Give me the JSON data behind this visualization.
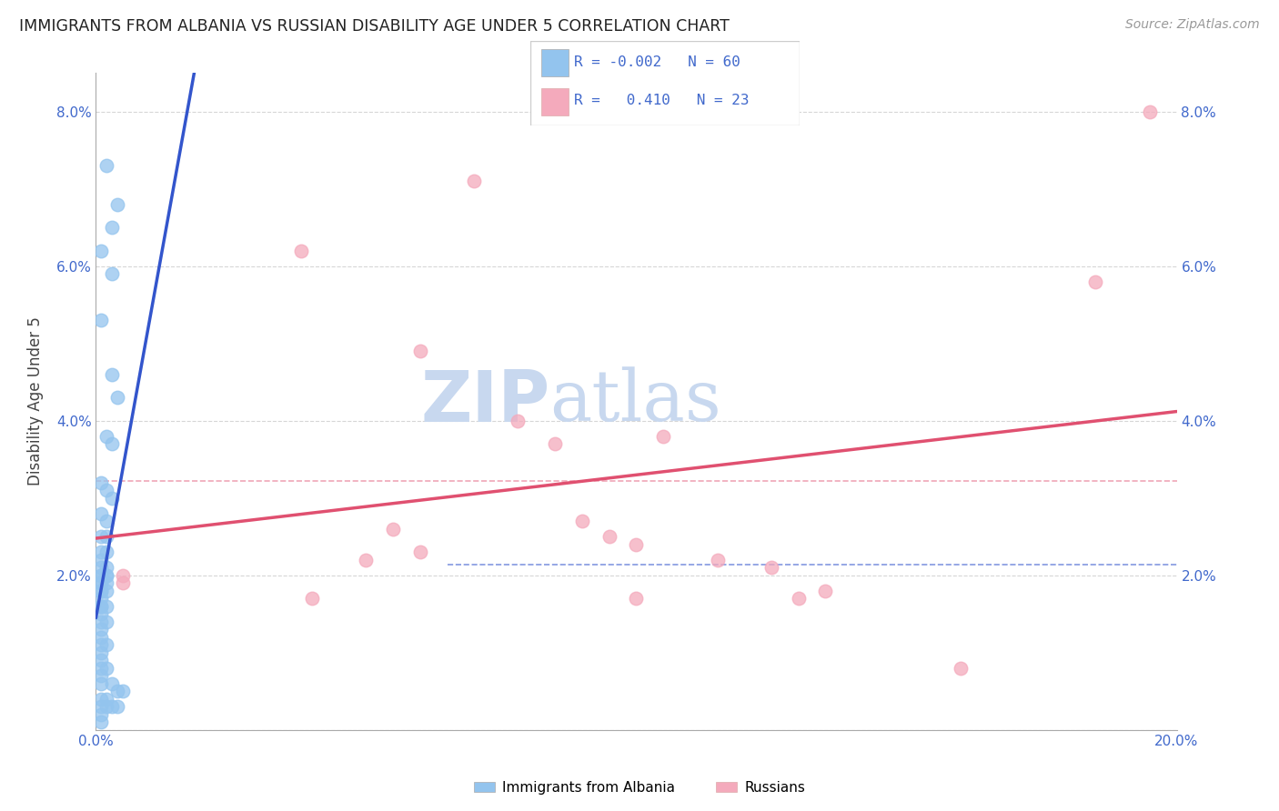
{
  "title": "IMMIGRANTS FROM ALBANIA VS RUSSIAN DISABILITY AGE UNDER 5 CORRELATION CHART",
  "source": "Source: ZipAtlas.com",
  "ylabel": "Disability Age Under 5",
  "xlim": [
    0.0,
    0.2
  ],
  "ylim": [
    0.0,
    0.085
  ],
  "xticks": [
    0.0,
    0.05,
    0.1,
    0.15,
    0.2
  ],
  "xticklabels": [
    "0.0%",
    "",
    "",
    "",
    "20.0%"
  ],
  "yticks": [
    0.0,
    0.02,
    0.04,
    0.06,
    0.08
  ],
  "yticklabels": [
    "",
    "2.0%",
    "4.0%",
    "6.0%",
    "8.0%"
  ],
  "albania_x": [
    0.002,
    0.004,
    0.003,
    0.001,
    0.003,
    0.001,
    0.003,
    0.004,
    0.002,
    0.003,
    0.001,
    0.002,
    0.003,
    0.001,
    0.002,
    0.001,
    0.002,
    0.001,
    0.002,
    0.001,
    0.001,
    0.002,
    0.001,
    0.002,
    0.001,
    0.002,
    0.001,
    0.001,
    0.002,
    0.001,
    0.001,
    0.002,
    0.001,
    0.001,
    0.002,
    0.001,
    0.001,
    0.001,
    0.002,
    0.001,
    0.001,
    0.001,
    0.002,
    0.001,
    0.001,
    0.001,
    0.002,
    0.001,
    0.001,
    0.003,
    0.004,
    0.005,
    0.001,
    0.002,
    0.001,
    0.002,
    0.003,
    0.004,
    0.001,
    0.001
  ],
  "albania_y": [
    0.073,
    0.068,
    0.065,
    0.062,
    0.059,
    0.053,
    0.046,
    0.043,
    0.038,
    0.037,
    0.032,
    0.031,
    0.03,
    0.028,
    0.027,
    0.025,
    0.025,
    0.023,
    0.023,
    0.022,
    0.021,
    0.021,
    0.02,
    0.02,
    0.02,
    0.02,
    0.019,
    0.019,
    0.019,
    0.018,
    0.018,
    0.018,
    0.017,
    0.016,
    0.016,
    0.016,
    0.015,
    0.014,
    0.014,
    0.013,
    0.012,
    0.011,
    0.011,
    0.01,
    0.009,
    0.008,
    0.008,
    0.007,
    0.006,
    0.006,
    0.005,
    0.005,
    0.004,
    0.004,
    0.003,
    0.003,
    0.003,
    0.003,
    0.002,
    0.001
  ],
  "russian_x": [
    0.005,
    0.005,
    0.038,
    0.06,
    0.07,
    0.078,
    0.085,
    0.09,
    0.095,
    0.1,
    0.105,
    0.115,
    0.125,
    0.135,
    0.16,
    0.185,
    0.195,
    0.04,
    0.05,
    0.055,
    0.06,
    0.1,
    0.13
  ],
  "russian_y": [
    0.02,
    0.019,
    0.062,
    0.049,
    0.071,
    0.04,
    0.037,
    0.027,
    0.025,
    0.024,
    0.038,
    0.022,
    0.021,
    0.018,
    0.008,
    0.058,
    0.08,
    0.017,
    0.022,
    0.026,
    0.023,
    0.017,
    0.017
  ],
  "albania_color": "#93C4EE",
  "russian_color": "#F4AABC",
  "albania_line_color": "#3355CC",
  "russian_line_color": "#E05070",
  "albania_R": -0.002,
  "albania_N": 60,
  "russian_R": 0.41,
  "russian_N": 23,
  "legend_label_albania": "Immigrants from Albania",
  "legend_label_russian": "Russians",
  "background_color": "#ffffff",
  "grid_color": "#bbbbbb",
  "title_color": "#222222",
  "axis_label_color": "#444444",
  "tick_label_color": "#4169CC",
  "watermark_color": "#c8d8ef",
  "marker_size": 110,
  "marker_alpha": 0.75
}
